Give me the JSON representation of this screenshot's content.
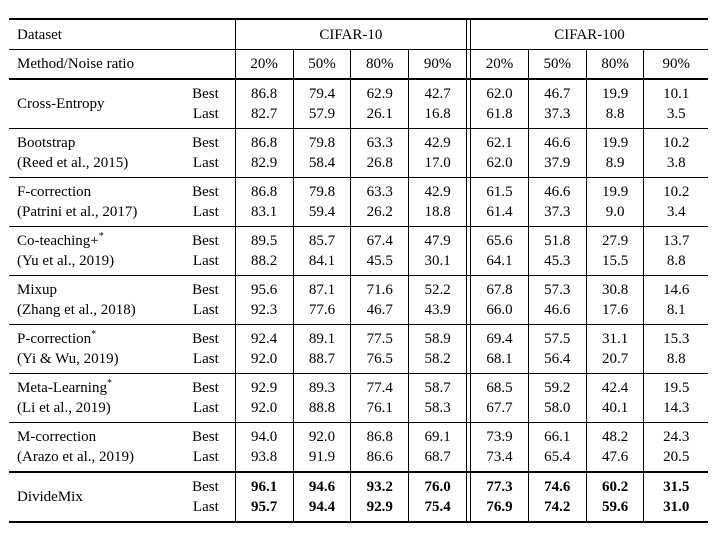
{
  "page": {
    "background": "#ffffff",
    "text_color": "#000000",
    "rule_color": "#000000"
  },
  "table": {
    "header": {
      "dataset_label": "Dataset",
      "method_label": "Method/Noise ratio",
      "datasets": [
        "CIFAR-10",
        "CIFAR-100"
      ],
      "noise_ratios": [
        "20%",
        "50%",
        "80%",
        "90%"
      ]
    },
    "row_labels": {
      "best": "Best",
      "last": "Last"
    },
    "rows": [
      {
        "name": "Cross-Entropy",
        "sup": "",
        "cite": "",
        "bold": false,
        "thick_top": false,
        "best": [
          "86.8",
          "79.4",
          "62.9",
          "42.7",
          "62.0",
          "46.7",
          "19.9",
          "10.1"
        ],
        "last": [
          "82.7",
          "57.9",
          "26.1",
          "16.8",
          "61.8",
          "37.3",
          "8.8",
          "3.5"
        ]
      },
      {
        "name": "Bootstrap",
        "sup": "",
        "cite": "(Reed et al., 2015)",
        "bold": false,
        "thick_top": false,
        "best": [
          "86.8",
          "79.8",
          "63.3",
          "42.9",
          "62.1",
          "46.6",
          "19.9",
          "10.2"
        ],
        "last": [
          "82.9",
          "58.4",
          "26.8",
          "17.0",
          "62.0",
          "37.9",
          "8.9",
          "3.8"
        ]
      },
      {
        "name": "F-correction",
        "sup": "",
        "cite": "(Patrini et al., 2017)",
        "bold": false,
        "thick_top": false,
        "best": [
          "86.8",
          "79.8",
          "63.3",
          "42.9",
          "61.5",
          "46.6",
          "19.9",
          "10.2"
        ],
        "last": [
          "83.1",
          "59.4",
          "26.2",
          "18.8",
          "61.4",
          "37.3",
          "9.0",
          "3.4"
        ]
      },
      {
        "name": "Co-teaching+",
        "sup": "*",
        "cite": "(Yu et al., 2019)",
        "bold": false,
        "thick_top": false,
        "best": [
          "89.5",
          "85.7",
          "67.4",
          "47.9",
          "65.6",
          "51.8",
          "27.9",
          "13.7"
        ],
        "last": [
          "88.2",
          "84.1",
          "45.5",
          "30.1",
          "64.1",
          "45.3",
          "15.5",
          "8.8"
        ]
      },
      {
        "name": "Mixup",
        "sup": "",
        "cite": "(Zhang et al., 2018)",
        "bold": false,
        "thick_top": false,
        "best": [
          "95.6",
          "87.1",
          "71.6",
          "52.2",
          "67.8",
          "57.3",
          "30.8",
          "14.6"
        ],
        "last": [
          "92.3",
          "77.6",
          "46.7",
          "43.9",
          "66.0",
          "46.6",
          "17.6",
          "8.1"
        ]
      },
      {
        "name": "P-correction",
        "sup": "*",
        "cite": "(Yi & Wu, 2019)",
        "bold": false,
        "thick_top": false,
        "best": [
          "92.4",
          "89.1",
          "77.5",
          "58.9",
          "69.4",
          "57.5",
          "31.1",
          "15.3"
        ],
        "last": [
          "92.0",
          "88.7",
          "76.5",
          "58.2",
          "68.1",
          "56.4",
          "20.7",
          "8.8"
        ]
      },
      {
        "name": "Meta-Learning",
        "sup": "*",
        "cite": "(Li et al., 2019)",
        "bold": false,
        "thick_top": false,
        "best": [
          "92.9",
          "89.3",
          "77.4",
          "58.7",
          "68.5",
          "59.2",
          "42.4",
          "19.5"
        ],
        "last": [
          "92.0",
          "88.8",
          "76.1",
          "58.3",
          "67.7",
          "58.0",
          "40.1",
          "14.3"
        ]
      },
      {
        "name": "M-correction",
        "sup": "",
        "cite": "(Arazo et al., 2019)",
        "bold": false,
        "thick_top": false,
        "best": [
          "94.0",
          "92.0",
          "86.8",
          "69.1",
          "73.9",
          "66.1",
          "48.2",
          "24.3"
        ],
        "last": [
          "93.8",
          "91.9",
          "86.6",
          "68.7",
          "73.4",
          "65.4",
          "47.6",
          "20.5"
        ]
      },
      {
        "name": "DivideMix",
        "sup": "",
        "cite": "",
        "bold": true,
        "thick_top": true,
        "best": [
          "96.1",
          "94.6",
          "93.2",
          "76.0",
          "77.3",
          "74.6",
          "60.2",
          "31.5"
        ],
        "last": [
          "95.7",
          "94.4",
          "92.9",
          "75.4",
          "76.9",
          "74.2",
          "59.6",
          "31.0"
        ]
      }
    ]
  }
}
